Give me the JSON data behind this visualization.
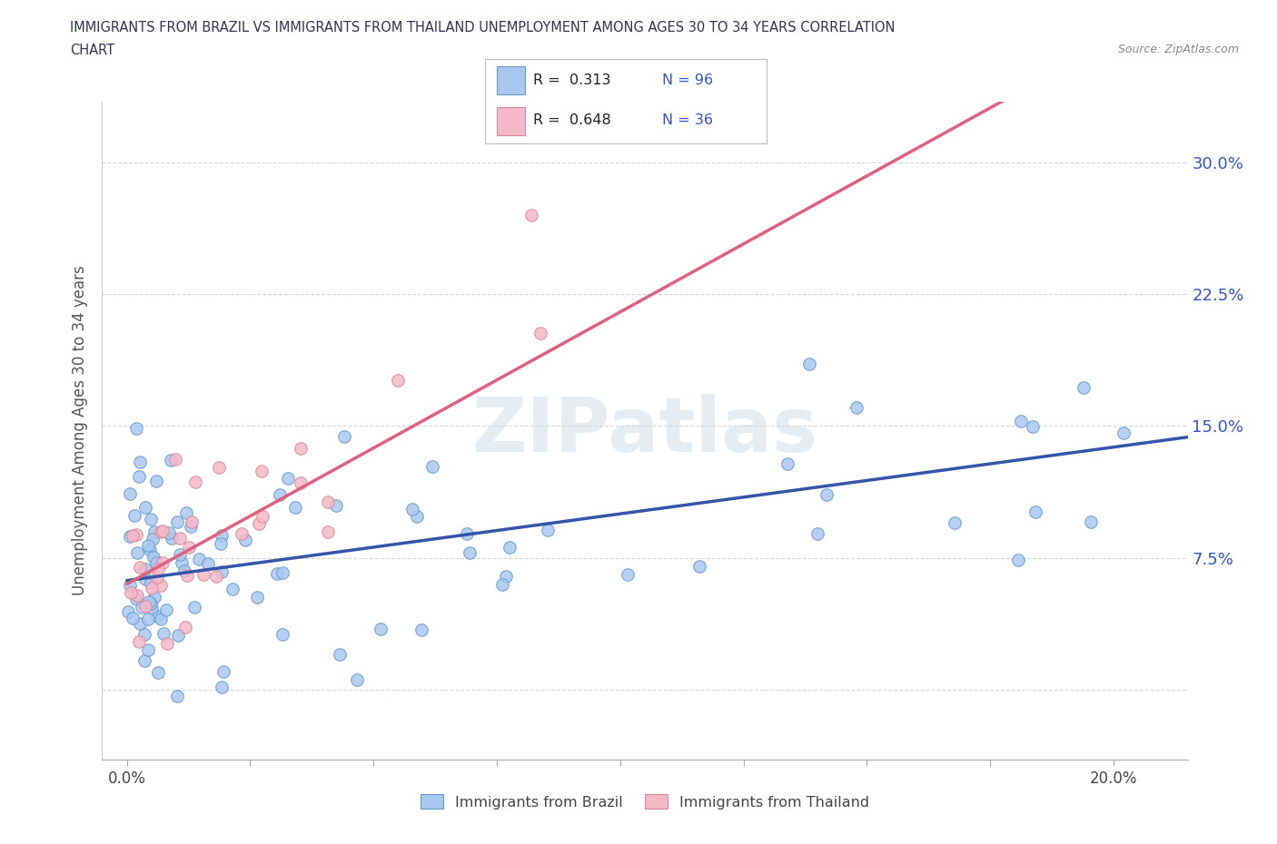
{
  "title_line1": "IMMIGRANTS FROM BRAZIL VS IMMIGRANTS FROM THAILAND UNEMPLOYMENT AMONG AGES 30 TO 34 YEARS CORRELATION",
  "title_line2": "CHART",
  "source_text": "Source: ZipAtlas.com",
  "ylabel": "Unemployment Among Ages 30 to 34 years",
  "brazil_color": "#a8c8f0",
  "brazil_edge_color": "#6699cc",
  "thailand_color": "#f5b8c8",
  "thailand_edge_color": "#dd8899",
  "brazil_line_color": "#3355aa",
  "thailand_line_color": "#e06080",
  "xlim": [
    -0.005,
    0.215
  ],
  "ylim": [
    -0.04,
    0.335
  ],
  "brazil_intercept": 0.062,
  "brazil_slope": 0.38,
  "thailand_intercept": 0.06,
  "thailand_slope": 1.55,
  "x_tick_positions": [
    0.0,
    0.025,
    0.05,
    0.075,
    0.1,
    0.125,
    0.15,
    0.175,
    0.2
  ],
  "x_tick_labels": [
    "0.0%",
    "",
    "",
    "",
    "",
    "",
    "",
    "",
    "20.0%"
  ],
  "y_tick_positions": [
    0.0,
    0.075,
    0.15,
    0.225,
    0.3
  ],
  "y_tick_labels_right": [
    "",
    "7.5%",
    "15.0%",
    "22.5%",
    "30.0%"
  ],
  "legend_r_brazil": "R =  0.313",
  "legend_n_brazil": "N = 96",
  "legend_r_thailand": "R =  0.648",
  "legend_n_thailand": "N = 36",
  "watermark": "ZIPatlas"
}
